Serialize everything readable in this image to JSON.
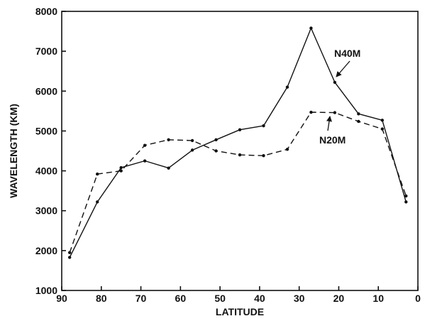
{
  "chart_data": {
    "type": "line",
    "xlabel": "LATITUDE",
    "ylabel": "WAVELENGTH (KM)",
    "xlim": [
      90,
      0
    ],
    "ylim": [
      1000,
      8000
    ],
    "x_reversed": true,
    "xticks": [
      90,
      80,
      70,
      60,
      50,
      40,
      30,
      20,
      10,
      0
    ],
    "yticks": [
      1000,
      2000,
      3000,
      4000,
      5000,
      6000,
      7000,
      8000
    ],
    "grid": false,
    "series": [
      {
        "name": "N40M",
        "style": "solid",
        "x": [
          88,
          81,
          75,
          69,
          63,
          57,
          51,
          45,
          39,
          33,
          27,
          21,
          15,
          9,
          3
        ],
        "y": [
          1830,
          3220,
          4080,
          4250,
          4070,
          4520,
          4780,
          5030,
          5130,
          6100,
          7580,
          6220,
          5430,
          5270,
          3220
        ]
      },
      {
        "name": "N20M",
        "style": "dashed",
        "x": [
          88,
          81,
          75,
          69,
          63,
          57,
          51,
          45,
          39,
          33,
          27,
          21,
          15,
          9,
          3
        ],
        "y": [
          1950,
          3920,
          4000,
          4640,
          4780,
          4760,
          4500,
          4400,
          4380,
          4540,
          5470,
          5460,
          5240,
          5050,
          3370
        ]
      }
    ],
    "annotations": [
      {
        "text": "N40M",
        "series": "N40M",
        "x": 22,
        "y": 6300
      },
      {
        "text": "N20M",
        "series": "N20M",
        "x": 23,
        "y": 5350
      }
    ]
  }
}
